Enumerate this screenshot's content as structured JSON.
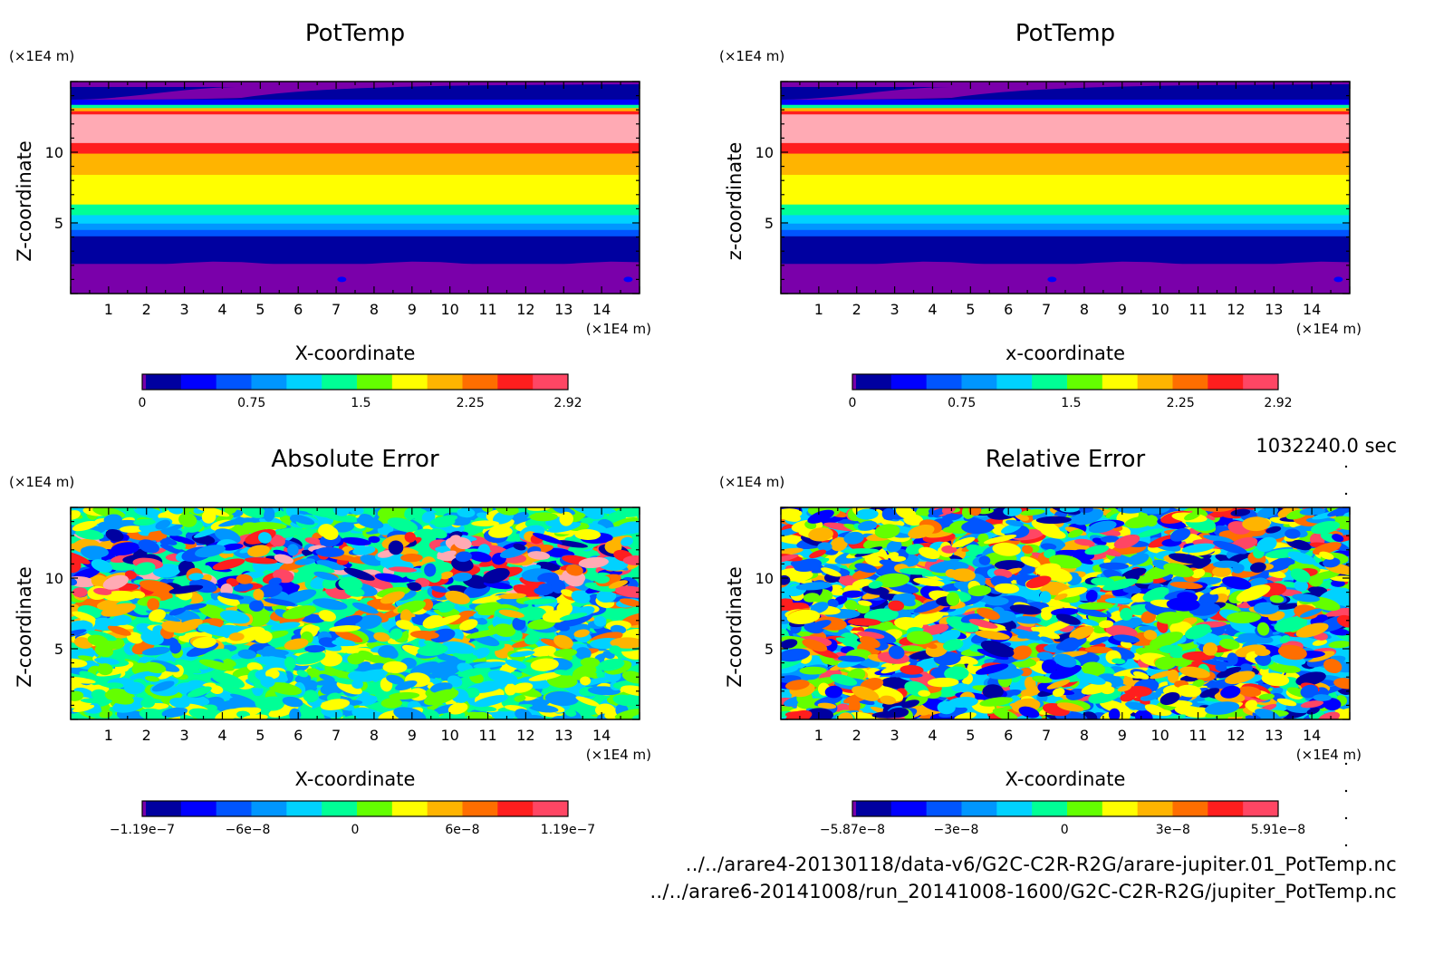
{
  "time_label": "1032240.0 sec",
  "footer": {
    "line1": "../../arare4-20130118/data-v6/G2C-C2R-R2G/arare-jupiter.01_PotTemp.nc",
    "line2": "../../arare6-20141008/run_20141008-1600/G2C-C2R-R2G/jupiter_PotTemp.nc"
  },
  "palette": [
    "#7a00aa",
    "#0000a0",
    "#0000ff",
    "#0055ff",
    "#0096ff",
    "#00d2ff",
    "#00ff96",
    "#64ff00",
    "#ffff00",
    "#ffb400",
    "#ff6e00",
    "#ff1e1e",
    "#ff4664",
    "#ffaab4"
  ],
  "chart_data": [
    {
      "type": "heatmap",
      "title": "PotTemp",
      "xlabel": "X-coordinate",
      "ylabel": "Z-coordinate",
      "x_unit": "(×1E4 m)",
      "y_unit": "(×1E4 m)",
      "xlim": [
        0,
        15
      ],
      "ylim": [
        0,
        15
      ],
      "x_ticks": [
        1,
        2,
        3,
        4,
        5,
        6,
        7,
        8,
        9,
        10,
        11,
        12,
        13,
        14
      ],
      "y_ticks": [
        5,
        10
      ],
      "field": "stratified",
      "colorbar": {
        "min": 0,
        "max": 2.92,
        "tick_values": [
          0,
          0.75,
          1.5,
          2.25,
          2.92
        ],
        "tick_labels": [
          "0",
          "0.75",
          "1.5",
          "2.25",
          "2.92"
        ]
      }
    },
    {
      "type": "heatmap",
      "title": "PotTemp",
      "xlabel": "x-coordinate",
      "ylabel": "z-coordinate",
      "x_unit": "(×1E4 m)",
      "y_unit": "(×1E4 m)",
      "xlim": [
        0,
        15
      ],
      "ylim": [
        0,
        15
      ],
      "x_ticks": [
        1,
        2,
        3,
        4,
        5,
        6,
        7,
        8,
        9,
        10,
        11,
        12,
        13,
        14
      ],
      "y_ticks": [
        5,
        10
      ],
      "field": "stratified",
      "colorbar": {
        "min": 0,
        "max": 2.92,
        "tick_values": [
          0,
          0.75,
          1.5,
          2.25,
          2.92
        ],
        "tick_labels": [
          "0",
          "0.75",
          "1.5",
          "2.25",
          "2.92"
        ]
      }
    },
    {
      "type": "heatmap",
      "title": "Absolute Error",
      "xlabel": "X-coordinate",
      "ylabel": "Z-coordinate",
      "x_unit": "(×1E4 m)",
      "y_unit": "(×1E4 m)",
      "xlim": [
        0,
        15
      ],
      "ylim": [
        0,
        15
      ],
      "x_ticks": [
        1,
        2,
        3,
        4,
        5,
        6,
        7,
        8,
        9,
        10,
        11,
        12,
        13,
        14
      ],
      "y_ticks": [
        5,
        10
      ],
      "field": "noise-absolute",
      "colorbar": {
        "min": -1.19e-07,
        "max": 1.19e-07,
        "tick_values": [
          -1.19e-07,
          -6e-08,
          0,
          6e-08,
          1.19e-07
        ],
        "tick_labels": [
          "−1.19e−7",
          "−6e−8",
          "0",
          "6e−8",
          "1.19e−7"
        ]
      }
    },
    {
      "type": "heatmap",
      "title": "Relative Error",
      "xlabel": "X-coordinate",
      "ylabel": "Z-coordinate",
      "x_unit": "(×1E4 m)",
      "y_unit": "(×1E4 m)",
      "xlim": [
        0,
        15
      ],
      "ylim": [
        0,
        15
      ],
      "x_ticks": [
        1,
        2,
        3,
        4,
        5,
        6,
        7,
        8,
        9,
        10,
        11,
        12,
        13,
        14
      ],
      "y_ticks": [
        5,
        10
      ],
      "field": "noise-relative",
      "colorbar": {
        "min": -5.87e-08,
        "max": 5.91e-08,
        "tick_values": [
          -5.87e-08,
          -3e-08,
          0,
          3e-08,
          5.91e-08
        ],
        "tick_labels": [
          "−5.87e−8",
          "−3e−8",
          "0",
          "3e−8",
          "5.91e−8"
        ]
      }
    }
  ]
}
